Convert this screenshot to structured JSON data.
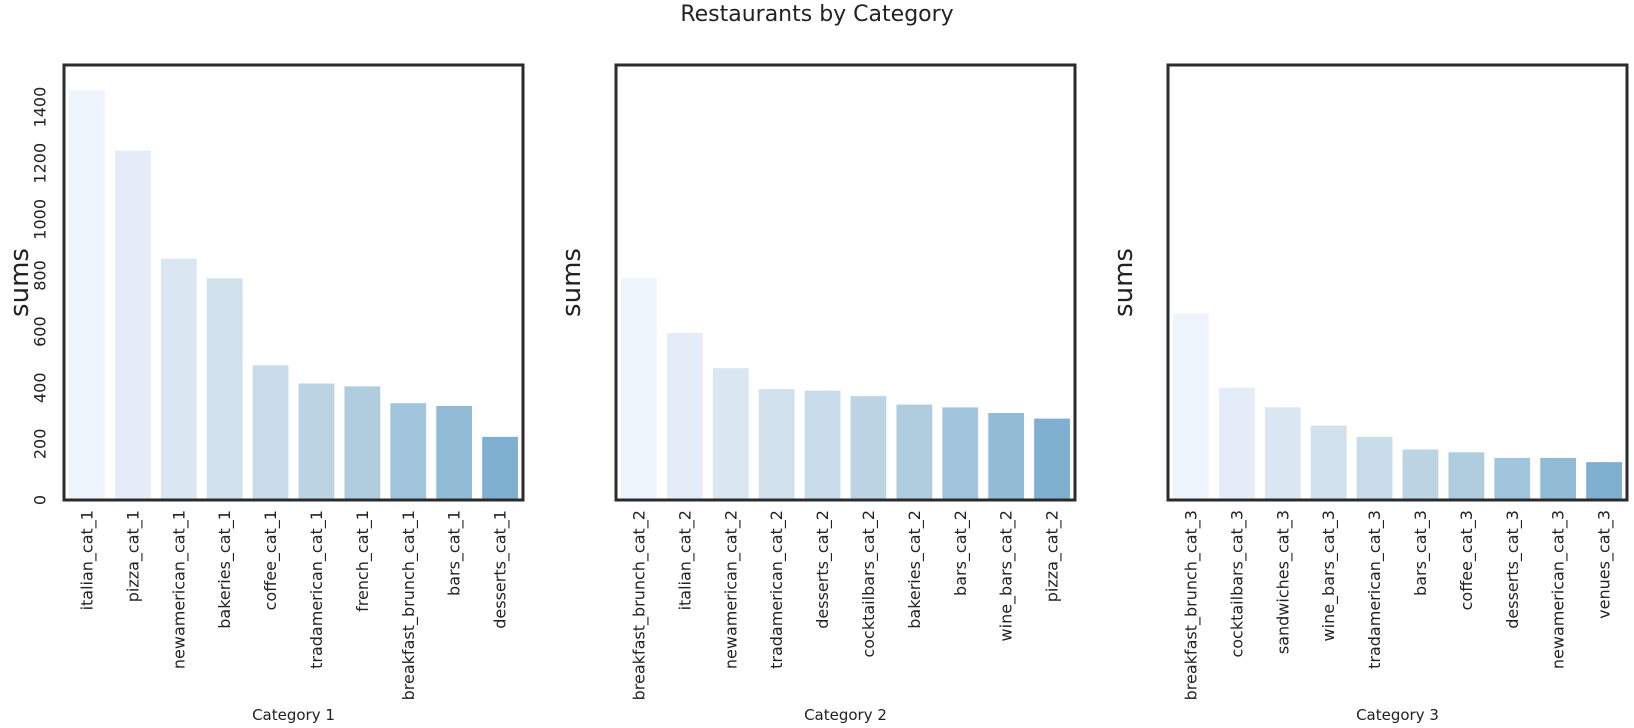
{
  "title": "Restaurants by Category",
  "bar_colors": [
    "#eef4fc",
    "#e4edf7",
    "#dae6f2",
    "#d1e0ed",
    "#c9dcea",
    "#bdd4e5",
    "#b0cde0",
    "#a1c5dc",
    "#92bbd5",
    "#80b0d0"
  ],
  "axis_color": "#2b2b2b",
  "chart_data": [
    {
      "type": "bar",
      "categories": [
        "italian_cat_1",
        "pizza_cat_1",
        "newamerican_cat_1",
        "bakeries_cat_1",
        "coffee_cat_1",
        "tradamerican_cat_1",
        "french_cat_1",
        "breakfast_brunch_cat_1",
        "bars_cat_1",
        "desserts_cat_1"
      ],
      "values": [
        1460,
        1245,
        860,
        790,
        480,
        415,
        405,
        345,
        335,
        225
      ],
      "xlabel": "Category 1",
      "ylabel": "sums",
      "ylim": [
        0,
        1550
      ],
      "yticks": [
        0,
        200,
        400,
        600,
        800,
        1000,
        1200,
        1400
      ],
      "grid": false
    },
    {
      "type": "bar",
      "categories": [
        "breakfast_brunch_cat_2",
        "italian_cat_2",
        "newamerican_cat_2",
        "tradamerican_cat_2",
        "desserts_cat_2",
        "cocktailbars_cat_2",
        "bakeries_cat_2",
        "bars_cat_2",
        "wine_bars_cat_2",
        "pizza_cat_2"
      ],
      "values": [
        790,
        595,
        470,
        395,
        390,
        370,
        340,
        330,
        310,
        290
      ],
      "xlabel": "Category 2",
      "ylabel": "sums",
      "ylim": [
        0,
        1550
      ],
      "grid": false
    },
    {
      "type": "bar",
      "categories": [
        "breakfast_brunch_cat_3",
        "cocktailbars_cat_3",
        "sandwiches_cat_3",
        "wine_bars_cat_3",
        "tradamerican_cat_3",
        "bars_cat_3",
        "coffee_cat_3",
        "desserts_cat_3",
        "newamerican_cat_3",
        "venues_cat_3"
      ],
      "values": [
        665,
        400,
        330,
        265,
        225,
        180,
        170,
        150,
        150,
        135
      ],
      "xlabel": "Category 3",
      "ylabel": "sums",
      "ylim": [
        0,
        1550
      ],
      "grid": false
    }
  ]
}
